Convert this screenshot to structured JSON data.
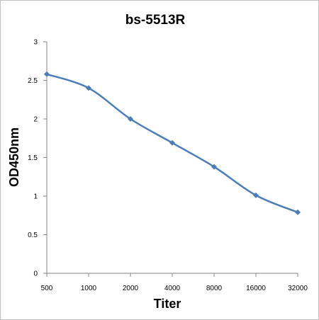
{
  "chart_data": {
    "type": "line",
    "title": "bs-5513R",
    "xlabel": "Titer",
    "ylabel": "OD450nm",
    "categories": [
      "500",
      "1000",
      "2000",
      "4000",
      "8000",
      "16000",
      "32000"
    ],
    "series": [
      {
        "values": [
          2.58,
          2.4,
          2.0,
          1.69,
          1.38,
          1.01,
          0.79
        ]
      }
    ],
    "ylim": [
      0,
      3
    ],
    "yticks": [
      "0",
      "0.5",
      "1",
      "1.5",
      "2",
      "2.5",
      "3"
    ],
    "grid": false,
    "legend": "none",
    "colors": {
      "line": "#4a7ebb",
      "axis": "#868686"
    }
  }
}
